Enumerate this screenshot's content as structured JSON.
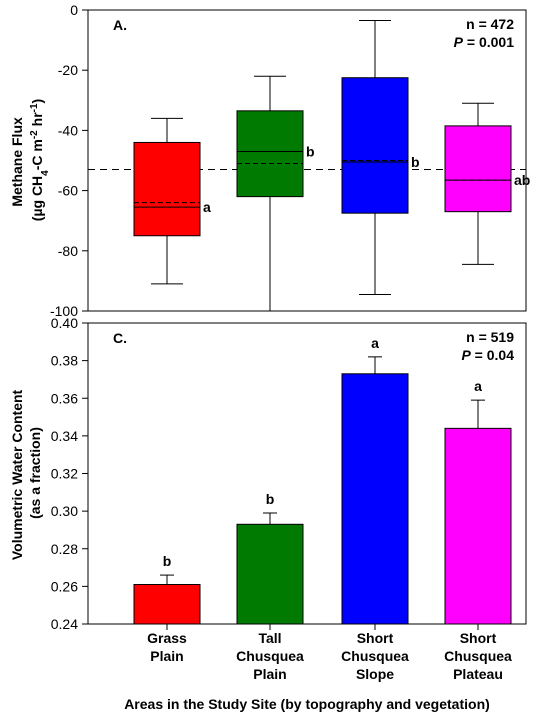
{
  "chart_data": [
    {
      "type": "box",
      "panel_label": "A.",
      "ylabel_line1": "Methane Flux",
      "ylabel_line2_parts": [
        "(µg CH",
        "4",
        "-C m",
        "-2",
        " hr",
        "-1",
        ")"
      ],
      "ylim": [
        -100,
        0
      ],
      "yticks": [
        "0",
        "-20",
        "-40",
        "-60",
        "-80",
        "-100"
      ],
      "ytick_values": [
        0,
        -20,
        -40,
        -60,
        -80,
        -100
      ],
      "stats": {
        "n_label": "n = 472",
        "p_italic": "P",
        "p_rest": " = 0.001"
      },
      "overall_mean_line": -53,
      "grid": false,
      "series": [
        {
          "category": "Grass Plain",
          "color": "#ff0000",
          "whisker_low": -91,
          "q1": -75,
          "median": -65.5,
          "mean": -64,
          "q3": -44,
          "whisker_high": -36,
          "letter": "a"
        },
        {
          "category": "Tall Chusquea Plain",
          "color": "#007a00",
          "whisker_low": -100,
          "q1": -62,
          "median": -47,
          "mean": -51,
          "q3": -33.5,
          "whisker_high": -22,
          "letter": "b"
        },
        {
          "category": "Short Chusquea Slope",
          "color": "#0000ff",
          "whisker_low": -94.5,
          "q1": -67.5,
          "median": -50.5,
          "mean": -50,
          "q3": -22.5,
          "whisker_high": -3.5,
          "letter": "b"
        },
        {
          "category": "Short Chusquea Plateau",
          "color": "#ff00ff",
          "whisker_low": -84.5,
          "q1": -67,
          "median": -56.5,
          "mean": -56.5,
          "q3": -38.5,
          "whisker_high": -31,
          "letter": "ab"
        }
      ]
    },
    {
      "type": "bar",
      "panel_label": "C.",
      "ylabel_line1": "Volumetric Water Content",
      "ylabel_line2": "(as a fraction)",
      "ylim": [
        0.24,
        0.4
      ],
      "yticks": [
        "0.24",
        "0.26",
        "0.28",
        "0.30",
        "0.32",
        "0.34",
        "0.36",
        "0.38",
        "0.40"
      ],
      "ytick_values": [
        0.24,
        0.26,
        0.28,
        0.3,
        0.32,
        0.34,
        0.36,
        0.38,
        0.4
      ],
      "stats": {
        "n_label": "n = 519",
        "p_italic": "P",
        "p_rest": " = 0.04"
      },
      "grid": false,
      "categories": [
        [
          "Grass",
          "Plain"
        ],
        [
          "Tall",
          "Chusquea",
          "Plain"
        ],
        [
          "Short",
          "Chusquea",
          "Slope"
        ],
        [
          "Short",
          "Chusquea",
          "Plateau"
        ]
      ],
      "values": [
        0.261,
        0.293,
        0.373,
        0.344
      ],
      "errors": [
        0.005,
        0.006,
        0.009,
        0.015
      ],
      "colors": [
        "#ff0000",
        "#007a00",
        "#0000ff",
        "#ff00ff"
      ],
      "letters": [
        "b",
        "b",
        "a",
        "a"
      ],
      "xlabel": "Areas in the Study Site (by topography and vegetation)"
    }
  ]
}
